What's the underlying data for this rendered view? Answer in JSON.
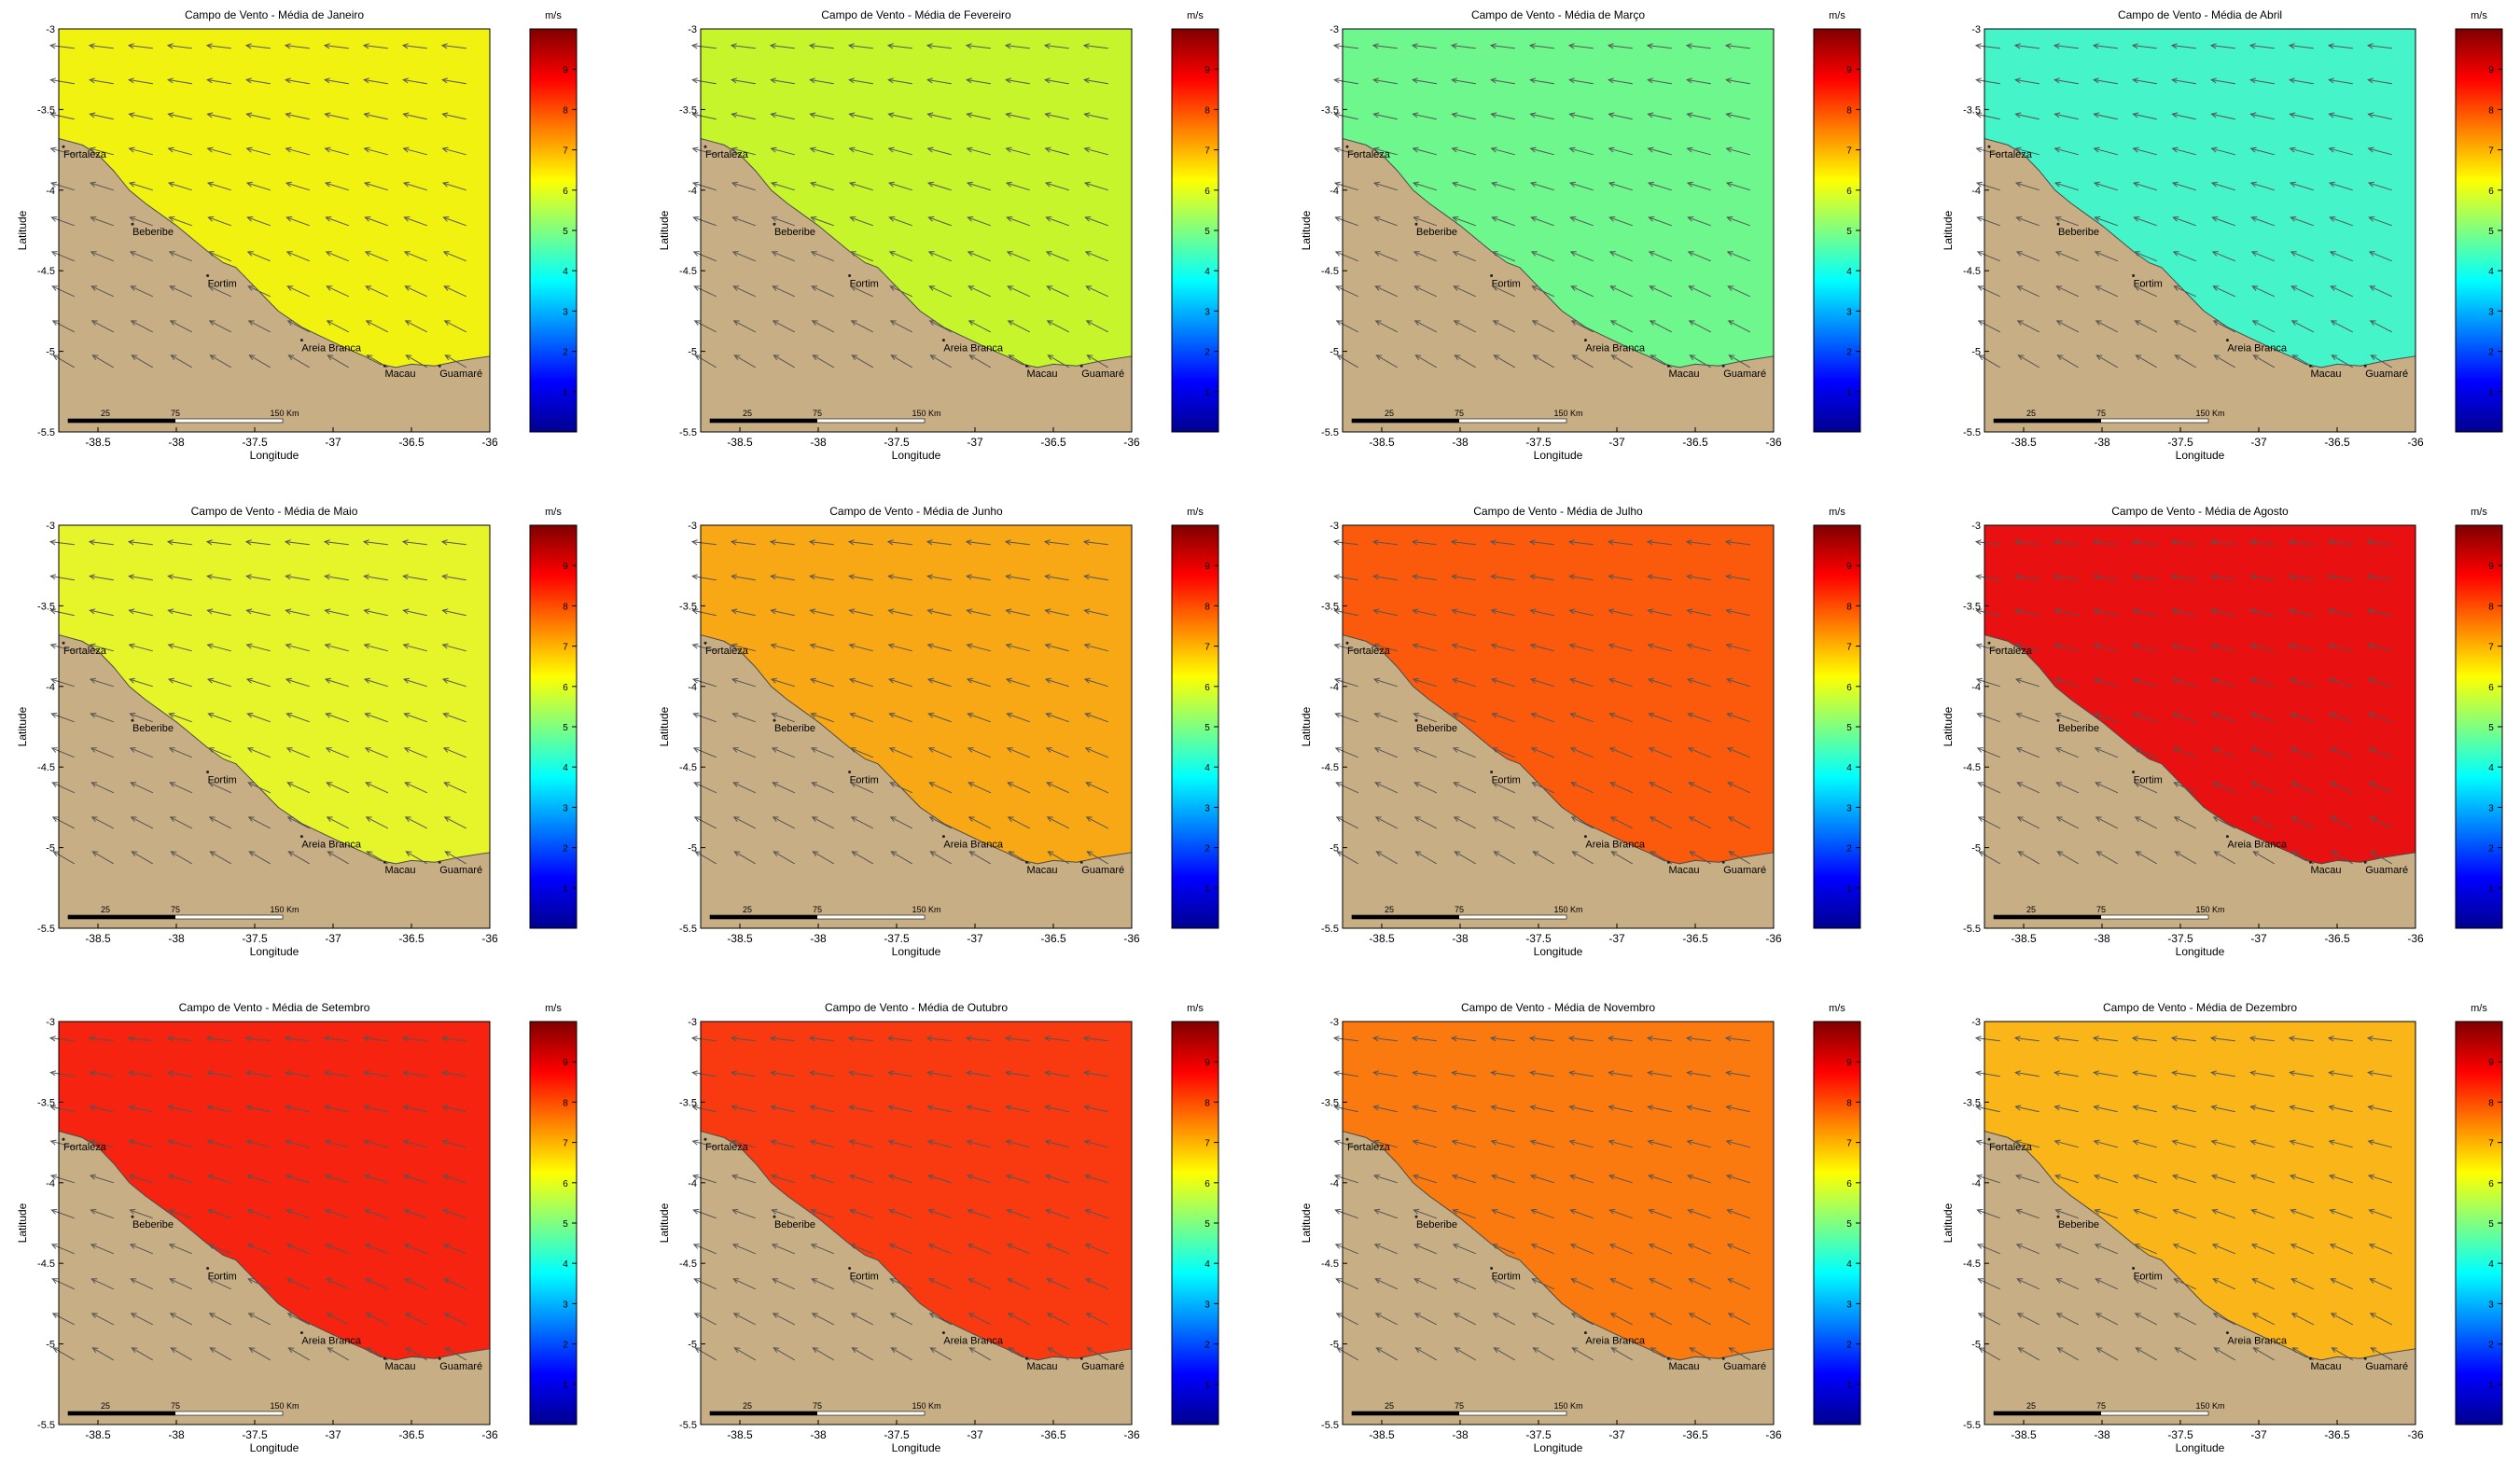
{
  "colors": {
    "land": "#c8ae84",
    "coast": "#4a4a4a",
    "arrow": "#555555",
    "frame": "#000000"
  },
  "colorbar": {
    "unit": "m/s",
    "ticks": [
      "1",
      "2",
      "3",
      "4",
      "5",
      "6",
      "7",
      "8",
      "9"
    ],
    "stops": [
      "#00008f",
      "#0000ff",
      "#0080ff",
      "#00ffff",
      "#80ff80",
      "#ffff00",
      "#ff8000",
      "#ff0000",
      "#800000"
    ]
  },
  "axes": {
    "xlabel": "Longitude",
    "ylabel": "Latitude",
    "xticks": [
      "-38.5",
      "-38",
      "-37.5",
      "-37",
      "-36.5",
      "-36"
    ],
    "yticks": [
      "-3",
      "-3.5",
      "-4",
      "-4.5",
      "-5",
      "-5.5"
    ]
  },
  "scalebar": {
    "t1": "25",
    "t2": "75",
    "t3": "150 Km"
  },
  "places": [
    "Fortaleza",
    "Beberibe",
    "Fortim",
    "Areia Branca",
    "Macau",
    "Guamaré"
  ],
  "chart_data": [
    {
      "type": "heatmap",
      "title": "Campo de Vento - Média de Janeiro",
      "color": "#f2f211",
      "xlabel": "Longitude",
      "ylabel": "Latitude",
      "xlim": [
        -38.75,
        -36
      ],
      "ylim": [
        -5.5,
        -3
      ]
    },
    {
      "type": "heatmap",
      "title": "Campo de Vento - Média de Fevereiro",
      "color": "#c6f52c",
      "xlabel": "Longitude",
      "ylabel": "Latitude",
      "xlim": [
        -38.75,
        -36
      ],
      "ylim": [
        -5.5,
        -3
      ]
    },
    {
      "type": "heatmap",
      "title": "Campo de Vento - Média de Março",
      "color": "#6ef78c",
      "xlabel": "Longitude",
      "ylabel": "Latitude",
      "xlim": [
        -38.75,
        -36
      ],
      "ylim": [
        -5.5,
        -3
      ]
    },
    {
      "type": "heatmap",
      "title": "Campo de Vento - Média de Abril",
      "color": "#45f4c8",
      "xlabel": "Longitude",
      "ylabel": "Latitude",
      "xlim": [
        -38.75,
        -36
      ],
      "ylim": [
        -5.5,
        -3
      ]
    },
    {
      "type": "heatmap",
      "title": "Campo de Vento - Média de Maio",
      "color": "#e6f52a",
      "xlabel": "Longitude",
      "ylabel": "Latitude",
      "xlim": [
        -38.75,
        -36
      ],
      "ylim": [
        -5.5,
        -3
      ]
    },
    {
      "type": "heatmap",
      "title": "Campo de Vento - Média de Junho",
      "color": "#f8a814",
      "xlabel": "Longitude",
      "ylabel": "Latitude",
      "xlim": [
        -38.75,
        -36
      ],
      "ylim": [
        -5.5,
        -3
      ]
    },
    {
      "type": "heatmap",
      "title": "Campo de Vento - Média de Julho",
      "color": "#fb5a0c",
      "xlabel": "Longitude",
      "ylabel": "Latitude",
      "xlim": [
        -38.75,
        -36
      ],
      "ylim": [
        -5.5,
        -3
      ]
    },
    {
      "type": "heatmap",
      "title": "Campo de Vento - Média de Agosto",
      "color": "#e81010",
      "xlabel": "Longitude",
      "ylabel": "Latitude",
      "xlim": [
        -38.75,
        -36
      ],
      "ylim": [
        -5.5,
        -3
      ]
    },
    {
      "type": "heatmap",
      "title": "Campo de Vento - Média de Setembro",
      "color": "#f5230f",
      "xlabel": "Longitude",
      "ylabel": "Latitude",
      "xlim": [
        -38.75,
        -36
      ],
      "ylim": [
        -5.5,
        -3
      ]
    },
    {
      "type": "heatmap",
      "title": "Campo de Vento - Média de Outubro",
      "color": "#f93a10",
      "xlabel": "Longitude",
      "ylabel": "Latitude",
      "xlim": [
        -38.75,
        -36
      ],
      "ylim": [
        -5.5,
        -3
      ]
    },
    {
      "type": "heatmap",
      "title": "Campo de Vento - Média de Novembro",
      "color": "#fb7a10",
      "xlabel": "Longitude",
      "ylabel": "Latitude",
      "xlim": [
        -38.75,
        -36
      ],
      "ylim": [
        -5.5,
        -3
      ]
    },
    {
      "type": "heatmap",
      "title": "Campo de Vento - Média de Dezembro",
      "color": "#fab618",
      "xlabel": "Longitude",
      "ylabel": "Latitude",
      "xlim": [
        -38.75,
        -36
      ],
      "ylim": [
        -5.5,
        -3
      ]
    }
  ]
}
